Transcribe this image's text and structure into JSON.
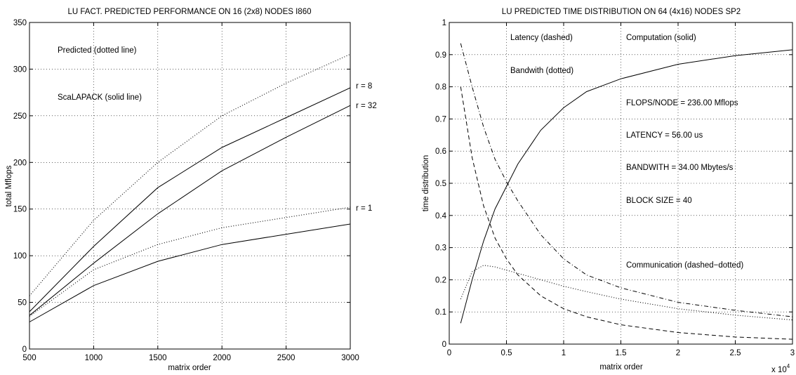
{
  "chart_data": [
    {
      "type": "line",
      "title": "LU FACT. PREDICTED PERFORMANCE ON 16 (2x8) NODES I860",
      "xlabel": "matrix order",
      "ylabel": "total Mflops",
      "xlim": [
        500,
        3000
      ],
      "ylim": [
        0,
        350
      ],
      "xticks": [
        500,
        1000,
        1500,
        2000,
        2500,
        3000
      ],
      "yticks": [
        0,
        50,
        100,
        150,
        200,
        250,
        300,
        350
      ],
      "grid": true,
      "annotations": [
        "Predicted (dotted line)",
        "ScaLAPACK (solid line)"
      ],
      "series": [
        {
          "style": "dotted",
          "x": [
            500,
            1000,
            1500,
            2000,
            2500,
            3000
          ],
          "y": [
            57,
            138,
            200,
            250,
            285,
            316
          ]
        },
        {
          "name": "r = 8",
          "style": "solid",
          "x": [
            500,
            1000,
            1500,
            2000,
            2500,
            3000
          ],
          "y": [
            40,
            110,
            173,
            216,
            248,
            280
          ]
        },
        {
          "name": "r = 32",
          "style": "solid",
          "x": [
            500,
            1000,
            1500,
            2000,
            2500,
            3000
          ],
          "y": [
            36,
            92,
            145,
            191,
            227,
            261
          ]
        },
        {
          "style": "dotted",
          "x": [
            500,
            1000,
            1500,
            2000,
            2500,
            3000
          ],
          "y": [
            35,
            85,
            112,
            130,
            141,
            152
          ]
        },
        {
          "name": "r = 1",
          "style": "solid",
          "x": [
            500,
            1000,
            1500,
            2000,
            2500,
            3000
          ],
          "y": [
            29,
            68,
            94,
            112,
            123,
            134
          ]
        }
      ]
    },
    {
      "type": "line",
      "title": "LU PREDICTED TIME DISTRIBUTION ON 64 (4x16) NODES SP2",
      "xlabel": "matrix order",
      "ylabel": "time distribution",
      "x_multiplier": "x 10",
      "x_multiplier_exp": "4",
      "xlim": [
        0,
        3
      ],
      "ylim": [
        0,
        1
      ],
      "xticks": [
        "0",
        "0.5",
        "1",
        "1.5",
        "2",
        "2.5",
        "3"
      ],
      "yticks": [
        "0",
        "0.1",
        "0.2",
        "0.3",
        "0.4",
        "0.5",
        "0.6",
        "0.7",
        "0.8",
        "0.9",
        "1"
      ],
      "grid": true,
      "annotations": [
        "Latency (dashed)",
        "Computation (solid)",
        "Bandwith (dotted)",
        "FLOPS/NODE = 236.00 Mflops",
        "LATENCY = 56.00 us",
        "BANDWITH = 34.00 Mbytes/s",
        "BLOCK SIZE = 40",
        "Communication (dashed−dotted)"
      ],
      "series": [
        {
          "name": "Computation",
          "style": "solid",
          "x": [
            0.1,
            0.2,
            0.3,
            0.4,
            0.5,
            0.6,
            0.8,
            1.0,
            1.2,
            1.5,
            2.0,
            2.5,
            3.0
          ],
          "y": [
            0.065,
            0.2,
            0.32,
            0.42,
            0.49,
            0.56,
            0.665,
            0.735,
            0.785,
            0.825,
            0.87,
            0.897,
            0.915
          ]
        },
        {
          "name": "Latency",
          "style": "dashed",
          "x": [
            0.1,
            0.2,
            0.3,
            0.4,
            0.5,
            0.6,
            0.8,
            1.0,
            1.2,
            1.5,
            2.0,
            2.5,
            3.0
          ],
          "y": [
            0.8,
            0.58,
            0.43,
            0.33,
            0.265,
            0.215,
            0.15,
            0.11,
            0.085,
            0.06,
            0.036,
            0.022,
            0.015
          ]
        },
        {
          "name": "Bandwith",
          "style": "dotted",
          "x": [
            0.1,
            0.2,
            0.3,
            0.4,
            0.5,
            0.6,
            0.8,
            1.0,
            1.2,
            1.5,
            2.0,
            2.5,
            3.0
          ],
          "y": [
            0.14,
            0.225,
            0.245,
            0.24,
            0.23,
            0.22,
            0.2,
            0.18,
            0.163,
            0.14,
            0.11,
            0.09,
            0.075
          ]
        },
        {
          "name": "Communication",
          "style": "dashed-dotted",
          "x": [
            0.1,
            0.2,
            0.3,
            0.4,
            0.5,
            0.6,
            0.8,
            1.0,
            1.2,
            1.5,
            2.0,
            2.5,
            3.0
          ],
          "y": [
            0.935,
            0.8,
            0.675,
            0.575,
            0.505,
            0.445,
            0.34,
            0.265,
            0.215,
            0.175,
            0.13,
            0.105,
            0.085
          ]
        }
      ]
    }
  ]
}
